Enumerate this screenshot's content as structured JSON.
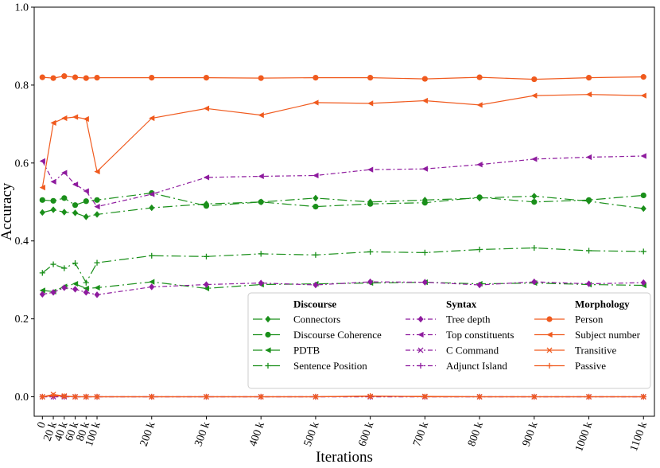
{
  "chart_data": {
    "type": "line",
    "xlabel": "Iterations",
    "ylabel": "Accuracy",
    "xlim": [
      -15,
      1120
    ],
    "ylim": [
      -0.05,
      1.0
    ],
    "x": [
      0,
      20,
      40,
      60,
      80,
      100,
      200,
      300,
      400,
      500,
      600,
      700,
      800,
      900,
      1000,
      1100
    ],
    "x_tick_labels": [
      "0",
      "20 k",
      "40 k",
      "60 k",
      "80 k",
      "100 k",
      "200 k",
      "300 k",
      "400 k",
      "500 k",
      "600 k",
      "700 k",
      "800 k",
      "900 k",
      "1000 k",
      "1100 k"
    ],
    "y_ticks": [
      0.0,
      0.2,
      0.4,
      0.6,
      0.8,
      1.0
    ],
    "y_tick_labels": [
      "0.0",
      "0.2",
      "0.4",
      "0.6",
      "0.8",
      "1.0"
    ],
    "grid": false,
    "legend_position": "lower-right",
    "groups": [
      {
        "title": "Discourse",
        "color": "#1a8f1a"
      },
      {
        "title": "Syntax",
        "color": "#8e1b9e"
      },
      {
        "title": "Morphology",
        "color": "#f05a1e"
      }
    ],
    "series": [
      {
        "name": "Connectors",
        "group": 0,
        "marker": "diamond",
        "dash": "12,4,2,4",
        "values": [
          0.473,
          0.48,
          0.474,
          0.472,
          0.462,
          0.468,
          0.485,
          0.495,
          0.5,
          0.51,
          0.5,
          0.505,
          0.51,
          0.515,
          0.502,
          0.483
        ]
      },
      {
        "name": "Discourse Coherence",
        "group": 0,
        "marker": "circle",
        "dash": "12,4,2,4",
        "values": [
          0.505,
          0.503,
          0.51,
          0.492,
          0.502,
          0.505,
          0.523,
          0.49,
          0.5,
          0.488,
          0.495,
          0.498,
          0.512,
          0.5,
          0.505,
          0.517
        ]
      },
      {
        "name": "PDTB",
        "group": 0,
        "marker": "triangle-left",
        "dash": "12,4,2,4",
        "values": [
          0.273,
          0.27,
          0.283,
          0.29,
          0.278,
          0.28,
          0.295,
          0.278,
          0.288,
          0.29,
          0.292,
          0.294,
          0.29,
          0.292,
          0.288,
          0.286
        ]
      },
      {
        "name": "Sentence Position",
        "group": 0,
        "marker": "plus",
        "dash": "12,4,2,4",
        "values": [
          0.318,
          0.34,
          0.33,
          0.343,
          0.293,
          0.344,
          0.362,
          0.36,
          0.367,
          0.364,
          0.372,
          0.37,
          0.378,
          0.382,
          0.375,
          0.373
        ]
      },
      {
        "name": "Tree depth",
        "group": 1,
        "marker": "diamond",
        "dash": "6,3,2,3",
        "values": [
          0.263,
          0.268,
          0.28,
          0.276,
          0.268,
          0.262,
          0.282,
          0.288,
          0.292,
          0.287,
          0.295,
          0.294,
          0.287,
          0.295,
          0.29,
          0.293
        ]
      },
      {
        "name": "Top constituents",
        "group": 1,
        "marker": "triangle-left",
        "dash": "6,3,2,3",
        "values": [
          0.605,
          0.552,
          0.575,
          0.545,
          0.528,
          0.488,
          0.52,
          0.563,
          0.566,
          0.568,
          0.583,
          0.585,
          0.596,
          0.61,
          0.615,
          0.618
        ]
      },
      {
        "name": "C Command",
        "group": 1,
        "marker": "x",
        "dash": "6,3,2,3",
        "values": [
          0.0,
          0.0,
          0.0,
          0.0,
          0.0,
          0.0,
          0.0,
          0.0,
          0.0,
          0.0,
          0.0,
          0.0,
          0.0,
          0.0,
          0.0,
          0.0
        ]
      },
      {
        "name": "Adjunct Island",
        "group": 1,
        "marker": "plus",
        "dash": "6,3,2,3",
        "values": [
          0.0,
          0.0,
          0.0,
          0.0,
          0.0,
          0.0,
          0.0,
          0.0,
          0.0,
          0.0,
          0.0,
          0.0,
          0.0,
          0.0,
          0.0,
          0.0
        ]
      },
      {
        "name": "Person",
        "group": 2,
        "marker": "circle",
        "dash": "",
        "values": [
          0.82,
          0.818,
          0.823,
          0.82,
          0.818,
          0.819,
          0.819,
          0.819,
          0.818,
          0.819,
          0.819,
          0.816,
          0.82,
          0.815,
          0.819,
          0.821
        ]
      },
      {
        "name": "Subject number",
        "group": 2,
        "marker": "triangle-left",
        "dash": "",
        "values": [
          0.537,
          0.703,
          0.715,
          0.718,
          0.713,
          0.578,
          0.715,
          0.74,
          0.723,
          0.755,
          0.753,
          0.76,
          0.749,
          0.773,
          0.776,
          0.773
        ]
      },
      {
        "name": "Transitive",
        "group": 2,
        "marker": "x",
        "dash": "",
        "values": [
          0.0,
          0.006,
          0.002,
          0.0,
          0.0,
          0.0,
          0.0,
          0.0,
          0.0,
          0.0,
          0.001,
          0.001,
          0.0,
          0.0,
          0.0,
          0.0
        ]
      },
      {
        "name": "Passive",
        "group": 2,
        "marker": "plus",
        "dash": "",
        "values": [
          0.0,
          0.003,
          0.001,
          0.0,
          0.0,
          0.0,
          0.0,
          0.0,
          0.0,
          0.0,
          0.002,
          0.0,
          0.0,
          0.0,
          0.0,
          0.0
        ]
      }
    ]
  }
}
